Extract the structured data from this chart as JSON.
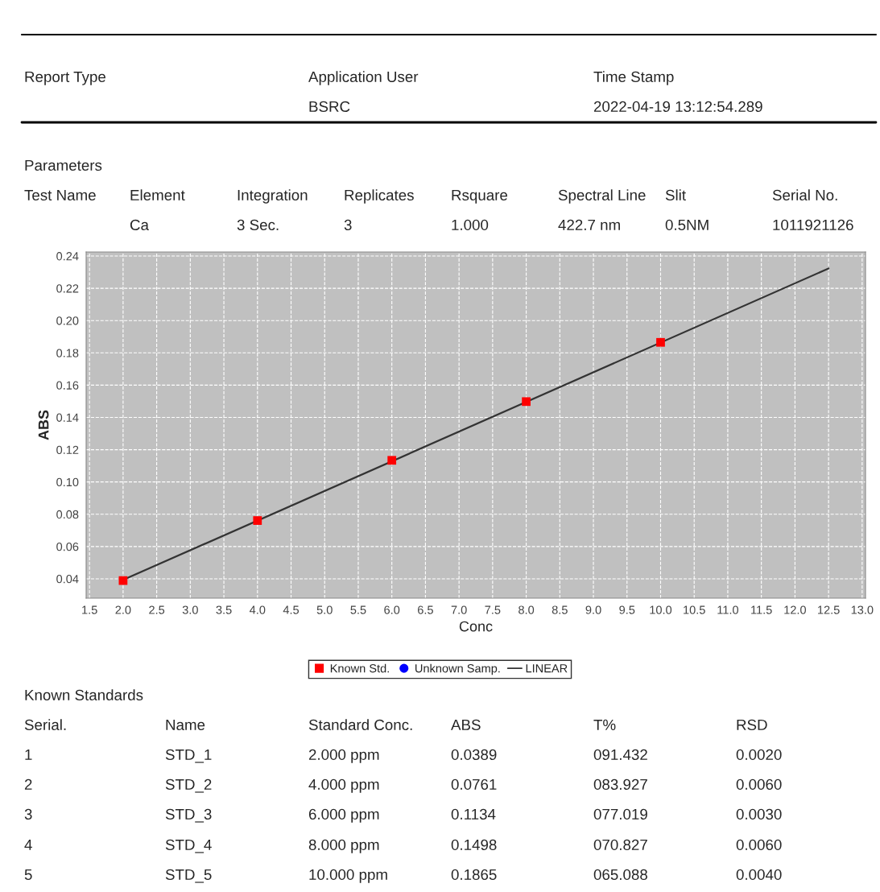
{
  "chart_data": {
    "type": "scatter",
    "xlabel": "Conc",
    "ylabel": "ABS",
    "series": [
      {
        "name": "Known Std.",
        "color": "#ff0000",
        "marker": "square",
        "x": [
          2,
          4,
          6,
          8,
          10
        ],
        "values": [
          0.0389,
          0.0761,
          0.1134,
          0.1498,
          0.1865
        ]
      },
      {
        "name": "Unknown Samp.",
        "color": "#0000ff",
        "marker": "circle"
      },
      {
        "name": "LINEAR",
        "type": "line",
        "color": "#333333",
        "marker": "none",
        "x": [
          2,
          12.5
        ],
        "values": [
          0.0393,
          0.2323
        ]
      }
    ],
    "xlim": [
      1.45,
      13.05
    ],
    "xticks": [
      {
        "value": 1.5,
        "label": "1.5"
      },
      {
        "value": 2,
        "label": "2.0"
      },
      {
        "value": 2.5,
        "label": "2.5"
      },
      {
        "value": 3,
        "label": "3.0"
      },
      {
        "value": 3.5,
        "label": "3.5"
      },
      {
        "value": 4,
        "label": "4.0"
      },
      {
        "value": 4.5,
        "label": "4.5"
      },
      {
        "value": 5,
        "label": "5.0"
      },
      {
        "value": 5.5,
        "label": "5.5"
      },
      {
        "value": 6,
        "label": "6.0"
      },
      {
        "value": 6.5,
        "label": "6.5"
      },
      {
        "value": 7,
        "label": "7.0"
      },
      {
        "value": 7.5,
        "label": "7.5"
      },
      {
        "value": 8,
        "label": "8.0"
      },
      {
        "value": 8.5,
        "label": "8.5"
      },
      {
        "value": 9,
        "label": "9.0"
      },
      {
        "value": 9.5,
        "label": "9.5"
      },
      {
        "value": 10,
        "label": "10.0"
      },
      {
        "value": 10.5,
        "label": "10.5"
      },
      {
        "value": 11,
        "label": "11.0"
      },
      {
        "value": 11.5,
        "label": "11.5"
      },
      {
        "value": 12,
        "label": "12.0"
      },
      {
        "value": 12.5,
        "label": "12.5"
      },
      {
        "value": 13,
        "label": "13.0"
      }
    ],
    "ylim": [
      0.028,
      0.2425
    ],
    "yticks": [
      {
        "value": 0.04,
        "label": "0.04"
      },
      {
        "value": 0.06,
        "label": "0.06"
      },
      {
        "value": 0.08,
        "label": "0.08"
      },
      {
        "value": 0.1,
        "label": "0.10"
      },
      {
        "value": 0.12,
        "label": "0.12"
      },
      {
        "value": 0.14,
        "label": "0.14"
      },
      {
        "value": 0.16,
        "label": "0.16"
      },
      {
        "value": 0.18,
        "label": "0.18"
      },
      {
        "value": 0.2,
        "label": "0.20"
      },
      {
        "value": 0.22,
        "label": "0.22"
      },
      {
        "value": 0.24,
        "label": "0.24"
      }
    ],
    "grid": true,
    "legend": "bottom",
    "annotations": [
      "Report Type",
      "Application User",
      "Time Stamp",
      "BSRC",
      "2022-04-19 13:12:54.289",
      "Parameters",
      "Test Name",
      "Element",
      "Integration",
      "Replicates",
      "Rsquare",
      "Spectral Line",
      "Slit",
      "Serial No.",
      "Ca",
      "3 Sec.",
      "3",
      "1.000",
      "422.7 nm",
      "0.5NM",
      "1011921126",
      "Known Standards",
      "Serial.",
      "Name",
      "Standard Conc.",
      "ABS",
      "T%",
      "RSD",
      "1",
      "STD_1",
      "2.000 ppm",
      "0.0389",
      "091.432",
      "0.0020",
      "2",
      "STD_2",
      "4.000 ppm",
      "0.0761",
      "083.927",
      "0.0060",
      "3",
      "STD_3",
      "6.000 ppm",
      "0.1134",
      "077.019",
      "0.0030",
      "4",
      "STD_4",
      "8.000 ppm",
      "0.1498",
      "070.827",
      "0.0060",
      "5",
      "STD_5",
      "10.000 ppm",
      "0.1865",
      "065.088",
      "0.0040"
    ]
  }
}
